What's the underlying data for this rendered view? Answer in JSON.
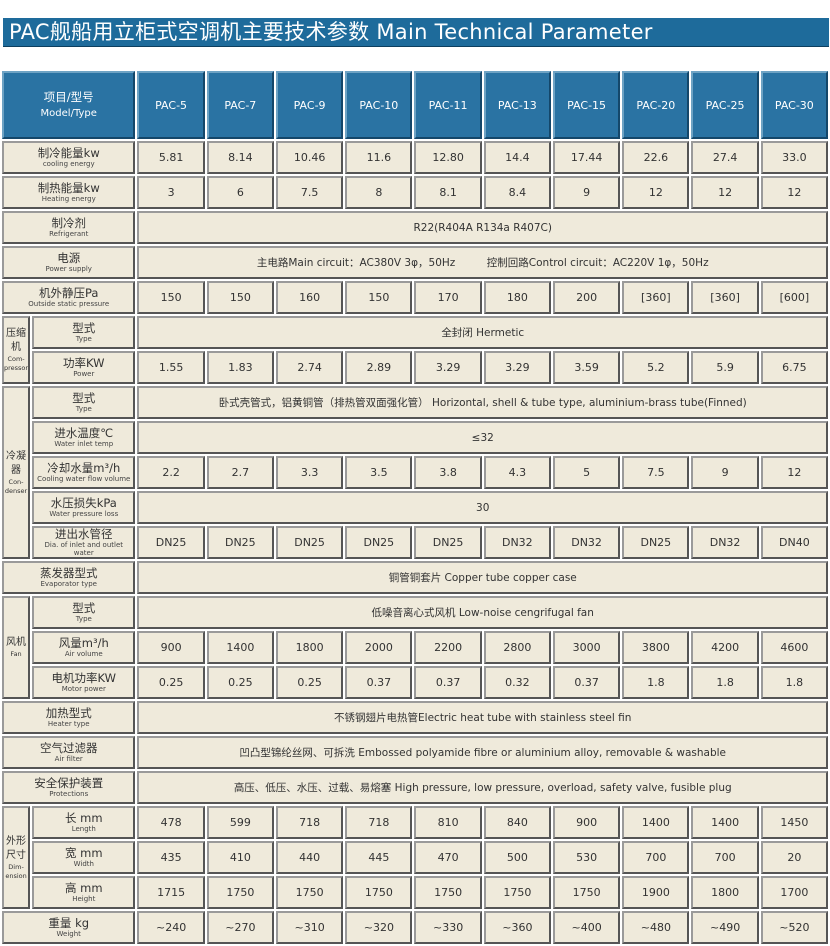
{
  "title": "PAC舰船用立柜式空调机主要技术参数 Main Technical Parameter",
  "header": {
    "zh": "项目/型号",
    "en": "Model/Type",
    "models": [
      "PAC-5",
      "PAC-7",
      "PAC-9",
      "PAC-10",
      "PAC-11",
      "PAC-13",
      "PAC-15",
      "PAC-20",
      "PAC-25",
      "PAC-30"
    ]
  },
  "colors": {
    "title_bg": "#1e6b9b",
    "header_bg": "#2a73a3",
    "cell_bg": "#efeadb"
  },
  "groups": [
    {
      "zh": "压缩机",
      "en": "Com-pressor"
    },
    {
      "zh": "冷凝器",
      "en": "Con-denser"
    },
    {
      "zh": "风机",
      "en": "Fan"
    },
    {
      "zh": "外形尺寸",
      "en": "Dim-ension"
    }
  ],
  "rows": [
    {
      "zh": "制冷能量kw",
      "en": "cooling energy",
      "values": [
        "5.81",
        "8.14",
        "10.46",
        "11.6",
        "12.80",
        "14.4",
        "17.44",
        "22.6",
        "27.4",
        "33.0"
      ]
    },
    {
      "zh": "制热能量kw",
      "en": "Heating energy",
      "values": [
        "3",
        "6",
        "7.5",
        "8",
        "8.1",
        "8.4",
        "9",
        "12",
        "12",
        "12"
      ]
    },
    {
      "zh": "制冷剂",
      "en": "Refrigerant",
      "span": "R22(R404A R134a R407C)"
    },
    {
      "zh": "电源",
      "en": "Power supply",
      "span": "主电路Main circuit：AC380V 3φ，50Hz　　　控制回路Control circuit：AC220V 1φ，50Hz"
    },
    {
      "zh": "机外静压Pa",
      "en": "Outside static pressure",
      "values": [
        "150",
        "150",
        "160",
        "150",
        "170",
        "180",
        "200",
        "[360]",
        "[360]",
        "[600]"
      ]
    },
    {
      "group": 0,
      "groupStart": 2,
      "zh": "型式",
      "en": "Type",
      "span": "全封闭 Hermetic"
    },
    {
      "group": 0,
      "zh": "功率KW",
      "en": "Power",
      "values": [
        "1.55",
        "1.83",
        "2.74",
        "2.89",
        "3.29",
        "3.29",
        "3.59",
        "5.2",
        "5.9",
        "6.75"
      ]
    },
    {
      "group": 1,
      "groupStart": 5,
      "zh": "型式",
      "en": "Type",
      "span": "卧式壳管式，铝黄铜管（排热管双面强化管） Horizontal, shell & tube type, aluminium-brass tube(Finned)"
    },
    {
      "group": 1,
      "zh": "进水温度℃",
      "en": "Water inlet temp",
      "span": "≤32"
    },
    {
      "group": 1,
      "zh": "冷却水量m³/h",
      "en": "Cooling water flow volume",
      "values": [
        "2.2",
        "2.7",
        "3.3",
        "3.5",
        "3.8",
        "4.3",
        "5",
        "7.5",
        "9",
        "12"
      ]
    },
    {
      "group": 1,
      "zh": "水压损失kPa",
      "en": "Water pressure loss",
      "span": "30"
    },
    {
      "group": 1,
      "zh": "进出水管径",
      "en": "Dia. of inlet and outlet water",
      "values": [
        "DN25",
        "DN25",
        "DN25",
        "DN25",
        "DN25",
        "DN32",
        "DN32",
        "DN25",
        "DN32",
        "DN40"
      ]
    },
    {
      "zh": "蒸发器型式",
      "en": "Evaporator type",
      "span": "铜管铜套片 Copper tube copper case"
    },
    {
      "group": 2,
      "groupStart": 3,
      "zh": "型式",
      "en": "Type",
      "span": "低噪音离心式风机 Low-noise cengrifugal fan"
    },
    {
      "group": 2,
      "zh": "风量m³/h",
      "en": "Air volume",
      "values": [
        "900",
        "1400",
        "1800",
        "2000",
        "2200",
        "2800",
        "3000",
        "3800",
        "4200",
        "4600"
      ]
    },
    {
      "group": 2,
      "zh": "电机功率KW",
      "en": "Motor power",
      "values": [
        "0.25",
        "0.25",
        "0.25",
        "0.37",
        "0.37",
        "0.32",
        "0.37",
        "1.8",
        "1.8",
        "1.8"
      ]
    },
    {
      "zh": "加热型式",
      "en": "Heater type",
      "span": "不锈钢翅片电热管Electric heat tube with stainless steel fin"
    },
    {
      "zh": "空气过滤器",
      "en": "Air filter",
      "span": "凹凸型锦纶丝网、可拆洗 Embossed polyamide fibre or aluminium alloy, removable & washable"
    },
    {
      "zh": "安全保护装置",
      "en": "Protections",
      "span": "高压、低压、水压、过载、易熔塞 High pressure, low pressure, overload, safety valve, fusible plug"
    },
    {
      "group": 3,
      "groupStart": 3,
      "zh": "长 mm",
      "en": "Length",
      "values": [
        "478",
        "599",
        "718",
        "718",
        "810",
        "840",
        "900",
        "1400",
        "1400",
        "1450"
      ]
    },
    {
      "group": 3,
      "zh": "宽 mm",
      "en": "Width",
      "values": [
        "435",
        "410",
        "440",
        "445",
        "470",
        "500",
        "530",
        "700",
        "700",
        "20"
      ]
    },
    {
      "group": 3,
      "zh": "高 mm",
      "en": "Height",
      "values": [
        "1715",
        "1750",
        "1750",
        "1750",
        "1750",
        "1750",
        "1750",
        "1900",
        "1800",
        "1700"
      ]
    },
    {
      "zh": "重量 kg",
      "en": "Weight",
      "values": [
        "~240",
        "~270",
        "~310",
        "~320",
        "~330",
        "~360",
        "~400",
        "~480",
        "~490",
        "~520"
      ]
    }
  ]
}
